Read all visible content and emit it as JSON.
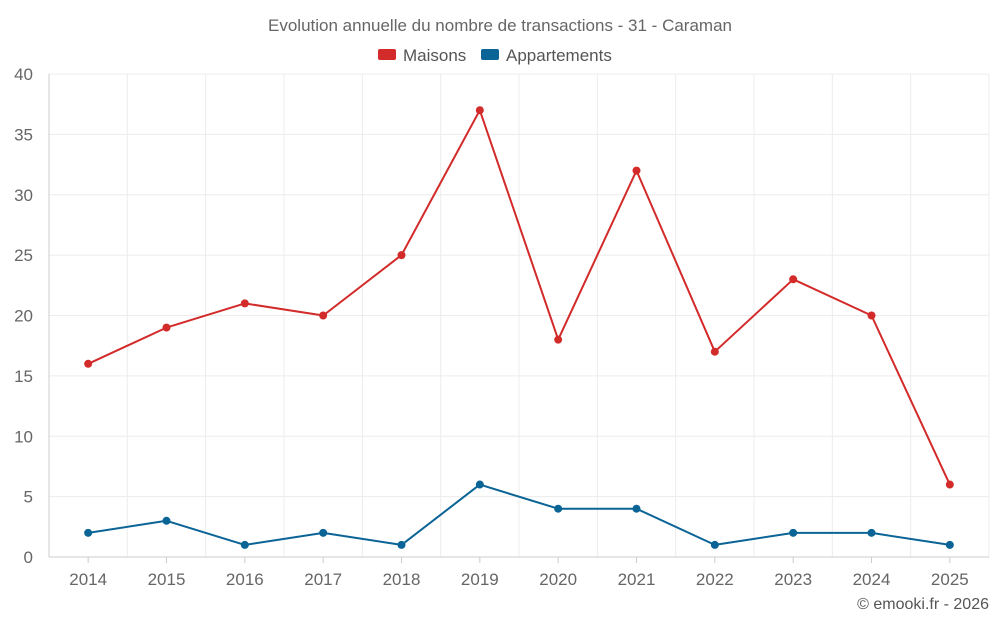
{
  "chart_data": {
    "type": "line",
    "title": "Evolution annuelle du nombre de transactions - 31 - Caraman",
    "x": [
      "2014",
      "2015",
      "2016",
      "2017",
      "2018",
      "2019",
      "2020",
      "2021",
      "2022",
      "2023",
      "2024",
      "2025"
    ],
    "series": [
      {
        "name": "Maisons",
        "color": "#d32a2a",
        "values": [
          16,
          19,
          21,
          20,
          25,
          37,
          18,
          32,
          17,
          23,
          20,
          6
        ]
      },
      {
        "name": "Appartements",
        "color": "#0a6496",
        "values": [
          2,
          3,
          1,
          2,
          1,
          6,
          4,
          4,
          1,
          2,
          2,
          1
        ]
      }
    ],
    "ylim": [
      0,
      40
    ],
    "yticks": [
      "0",
      "5",
      "10",
      "15",
      "20",
      "25",
      "30",
      "35",
      "40"
    ],
    "xlabel": "",
    "ylabel": "",
    "grid": true,
    "legend_position": "top-center"
  },
  "credit": "© emooki.fr - 2026"
}
